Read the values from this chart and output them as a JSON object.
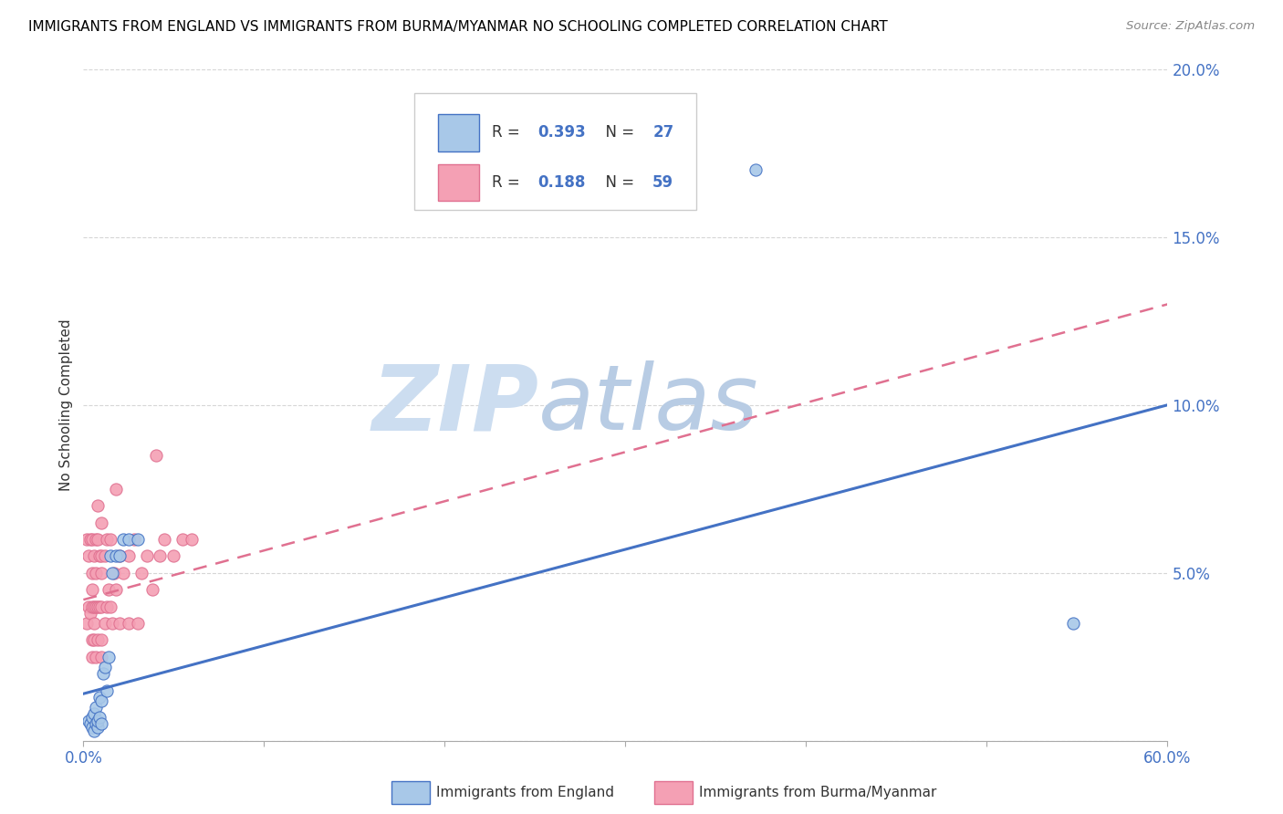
{
  "title": "IMMIGRANTS FROM ENGLAND VS IMMIGRANTS FROM BURMA/MYANMAR NO SCHOOLING COMPLETED CORRELATION CHART",
  "source": "Source: ZipAtlas.com",
  "ylabel": "No Schooling Completed",
  "xlim": [
    0.0,
    0.6
  ],
  "ylim": [
    0.0,
    0.2
  ],
  "xticks": [
    0.0,
    0.1,
    0.2,
    0.3,
    0.4,
    0.5,
    0.6
  ],
  "xticklabels": [
    "0.0%",
    "",
    "",
    "",
    "",
    "",
    "60.0%"
  ],
  "yticks": [
    0.0,
    0.05,
    0.1,
    0.15,
    0.2
  ],
  "yticklabels": [
    "",
    "5.0%",
    "10.0%",
    "15.0%",
    "20.0%"
  ],
  "legend_R1": "0.393",
  "legend_N1": "27",
  "legend_R2": "0.188",
  "legend_N2": "59",
  "color_england": "#a8c8e8",
  "color_burma": "#f4a0b4",
  "color_england_line": "#4472c4",
  "color_burma_line": "#e07090",
  "watermark_zip": "ZIP",
  "watermark_atlas": "atlas",
  "watermark_color_zip": "#c8ddf0",
  "watermark_color_atlas": "#b0cce8",
  "england_x": [
    0.003,
    0.004,
    0.005,
    0.005,
    0.006,
    0.006,
    0.007,
    0.007,
    0.008,
    0.008,
    0.009,
    0.009,
    0.01,
    0.01,
    0.011,
    0.012,
    0.013,
    0.014,
    0.015,
    0.016,
    0.018,
    0.02,
    0.022,
    0.025,
    0.03,
    0.372,
    0.548
  ],
  "england_y": [
    0.006,
    0.005,
    0.004,
    0.007,
    0.003,
    0.008,
    0.005,
    0.01,
    0.004,
    0.006,
    0.007,
    0.013,
    0.005,
    0.012,
    0.02,
    0.022,
    0.015,
    0.025,
    0.055,
    0.05,
    0.055,
    0.055,
    0.06,
    0.06,
    0.06,
    0.17,
    0.035
  ],
  "burma_x": [
    0.002,
    0.002,
    0.003,
    0.003,
    0.004,
    0.004,
    0.005,
    0.005,
    0.005,
    0.005,
    0.005,
    0.005,
    0.006,
    0.006,
    0.006,
    0.006,
    0.007,
    0.007,
    0.007,
    0.007,
    0.008,
    0.008,
    0.008,
    0.008,
    0.009,
    0.009,
    0.01,
    0.01,
    0.01,
    0.01,
    0.01,
    0.01,
    0.012,
    0.012,
    0.013,
    0.013,
    0.014,
    0.015,
    0.015,
    0.016,
    0.017,
    0.018,
    0.018,
    0.02,
    0.02,
    0.022,
    0.025,
    0.025,
    0.028,
    0.03,
    0.032,
    0.035,
    0.038,
    0.04,
    0.042,
    0.045,
    0.05,
    0.055,
    0.06
  ],
  "burma_y": [
    0.035,
    0.06,
    0.04,
    0.055,
    0.038,
    0.06,
    0.025,
    0.03,
    0.04,
    0.045,
    0.05,
    0.06,
    0.03,
    0.035,
    0.04,
    0.055,
    0.025,
    0.04,
    0.05,
    0.06,
    0.03,
    0.04,
    0.06,
    0.07,
    0.04,
    0.055,
    0.025,
    0.03,
    0.04,
    0.05,
    0.055,
    0.065,
    0.035,
    0.055,
    0.04,
    0.06,
    0.045,
    0.04,
    0.06,
    0.035,
    0.05,
    0.045,
    0.075,
    0.035,
    0.055,
    0.05,
    0.035,
    0.055,
    0.06,
    0.035,
    0.05,
    0.055,
    0.045,
    0.085,
    0.055,
    0.06,
    0.055,
    0.06,
    0.06
  ],
  "eng_line_x0": 0.0,
  "eng_line_y0": 0.014,
  "eng_line_x1": 0.6,
  "eng_line_y1": 0.1,
  "bur_line_x0": 0.0,
  "bur_line_y0": 0.042,
  "bur_line_x1": 0.6,
  "bur_line_y1": 0.13
}
